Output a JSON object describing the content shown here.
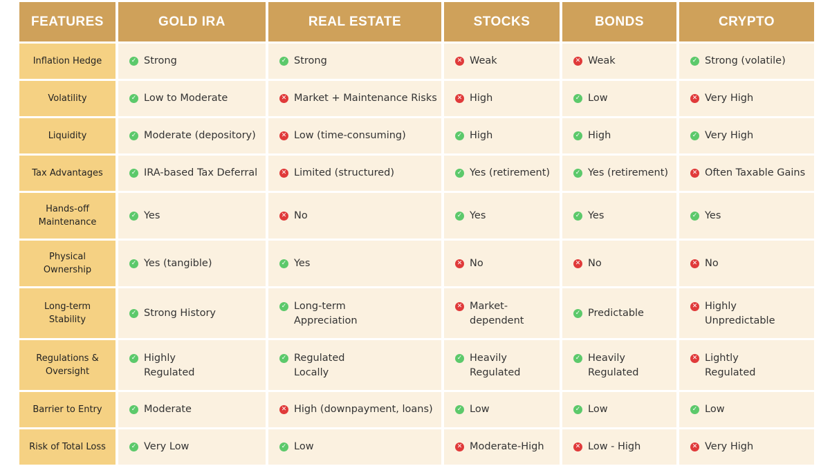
{
  "colors": {
    "header": "#cfa15a",
    "feature": "#f5d183",
    "cell": "#fbf1e0",
    "yes": "#5cc96b",
    "no": "#e03a3a"
  },
  "headers": [
    "FEATURES",
    "GOLD IRA",
    "REAL ESTATE",
    "STOCKS",
    "BONDS",
    "CRYPTO"
  ],
  "rows": [
    {
      "feature": "Inflation Hedge",
      "cells": [
        {
          "status": "yes",
          "text": "Strong"
        },
        {
          "status": "yes",
          "text": "Strong"
        },
        {
          "status": "no",
          "text": " Weak"
        },
        {
          "status": "no",
          "text": "Weak"
        },
        {
          "status": "yes",
          "text": "Strong (volatile)"
        }
      ]
    },
    {
      "feature": "Volatility",
      "cells": [
        {
          "status": "yes",
          "text": "Low to Moderate"
        },
        {
          "status": "no",
          "text": "Market + Maintenance Risks"
        },
        {
          "status": "no",
          "text": "High"
        },
        {
          "status": "yes",
          "text": "Low"
        },
        {
          "status": "no",
          "text": "Very High"
        }
      ]
    },
    {
      "feature": "Liquidity",
      "cells": [
        {
          "status": "yes",
          "text": "Moderate (depository)"
        },
        {
          "status": "no",
          "text": "Low (time-consuming)"
        },
        {
          "status": "yes",
          "text": "High"
        },
        {
          "status": "yes",
          "text": "High"
        },
        {
          "status": "yes",
          "text": "Very High"
        }
      ]
    },
    {
      "feature": "Tax Advantages",
      "cells": [
        {
          "status": "yes",
          "text": "IRA-based Tax Deferral"
        },
        {
          "status": "no",
          "text": "Limited (structured)"
        },
        {
          "status": "yes",
          "text": "Yes (retirement)"
        },
        {
          "status": "yes",
          "text": "Yes (retirement)"
        },
        {
          "status": "no",
          "text": "Often Taxable Gains"
        }
      ]
    },
    {
      "feature": "Hands-off\nMaintenance",
      "cells": [
        {
          "status": "yes",
          "text": "Yes"
        },
        {
          "status": "no",
          "text": "No"
        },
        {
          "status": "yes",
          "text": "Yes"
        },
        {
          "status": "yes",
          "text": "Yes"
        },
        {
          "status": "yes",
          "text": "Yes"
        }
      ]
    },
    {
      "feature": "Physical\nOwnership",
      "cells": [
        {
          "status": "yes",
          "text": "Yes (tangible)"
        },
        {
          "status": "yes",
          "text": "Yes"
        },
        {
          "status": "no",
          "text": "No"
        },
        {
          "status": "no",
          "text": "No"
        },
        {
          "status": "no",
          "text": "No"
        }
      ]
    },
    {
      "feature": "Long-term\nStability",
      "cells": [
        {
          "status": "yes",
          "text": "Strong History"
        },
        {
          "status": "yes",
          "text": "Long-term\nAppreciation"
        },
        {
          "status": "no",
          "text": "Market-\ndependent"
        },
        {
          "status": "yes",
          "text": "Predictable"
        },
        {
          "status": "no",
          "text": "Highly\nUnpredictable"
        }
      ]
    },
    {
      "feature": "Regulations &\nOversight",
      "cells": [
        {
          "status": "yes",
          "text": "Highly\nRegulated"
        },
        {
          "status": "yes",
          "text": "Regulated\nLocally"
        },
        {
          "status": "yes",
          "text": "Heavily\nRegulated"
        },
        {
          "status": "yes",
          "text": "Heavily\nRegulated"
        },
        {
          "status": "no",
          "text": "Lightly\nRegulated"
        }
      ]
    },
    {
      "feature": "Barrier to Entry",
      "cells": [
        {
          "status": "yes",
          "text": "Moderate"
        },
        {
          "status": "no",
          "text": "High (downpayment, loans)"
        },
        {
          "status": "yes",
          "text": "Low"
        },
        {
          "status": "yes",
          "text": "Low"
        },
        {
          "status": "yes",
          "text": "Low"
        }
      ]
    },
    {
      "feature": "Risk of Total Loss",
      "cells": [
        {
          "status": "yes",
          "text": "Very Low"
        },
        {
          "status": "yes",
          "text": " Low"
        },
        {
          "status": "no",
          "text": " Moderate-High"
        },
        {
          "status": "no",
          "text": "Low - High"
        },
        {
          "status": "no",
          "text": " Very High"
        }
      ]
    }
  ]
}
